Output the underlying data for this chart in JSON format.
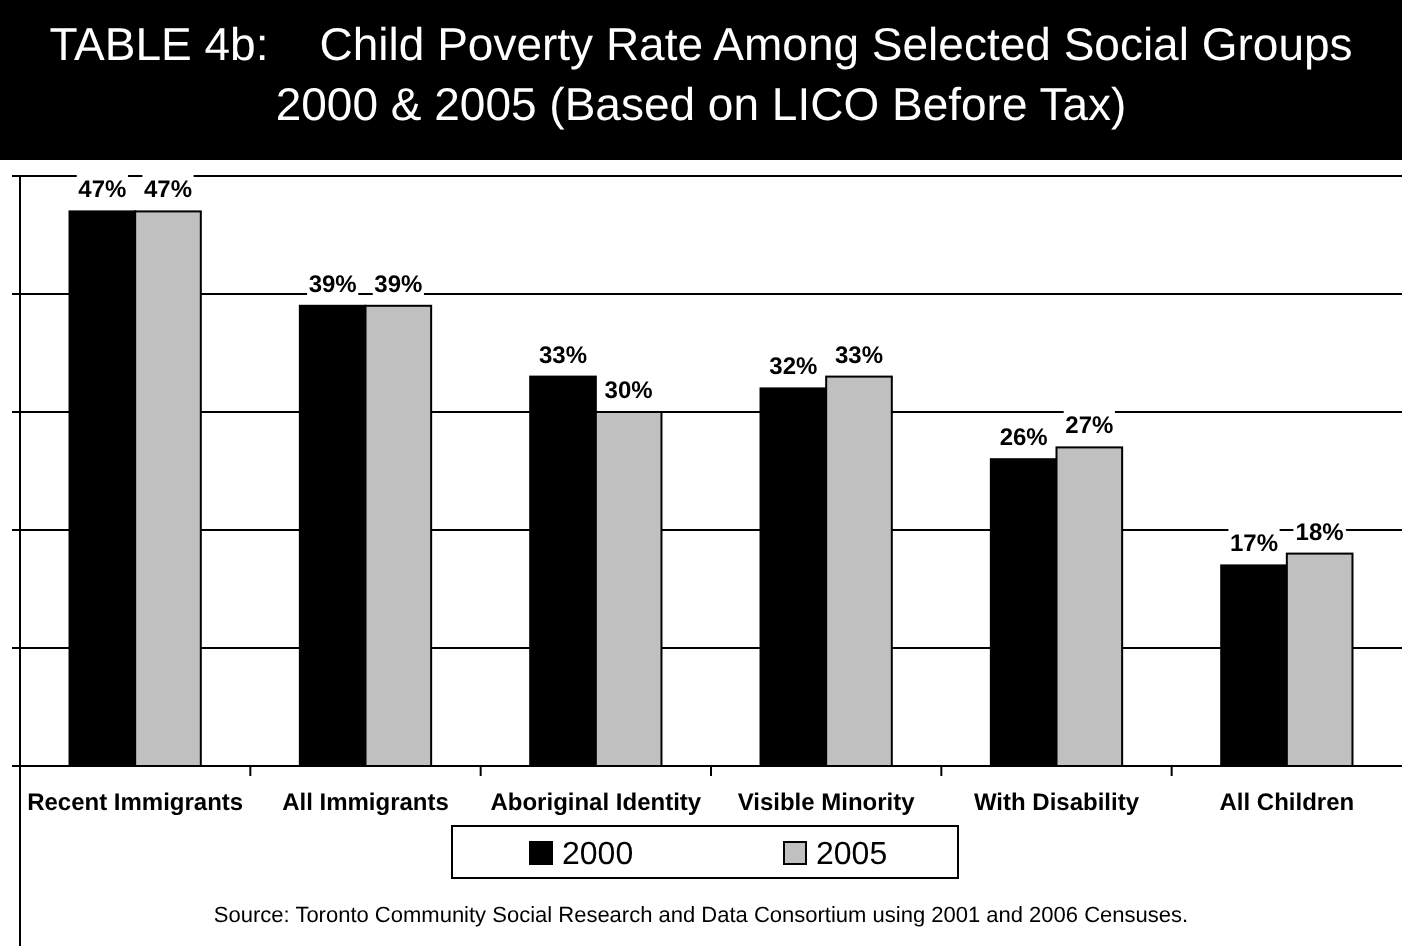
{
  "chart_data": {
    "type": "bar",
    "title": "TABLE 4b:    Child Poverty Rate Among Selected Social Groups\n2000 & 2005 (Based on LICO Before Tax)",
    "categories": [
      "Recent Immigrants",
      "All Immigrants",
      "Aboriginal Identity",
      "Visible Minority",
      "With Disability",
      "All Children"
    ],
    "series": [
      {
        "name": "2000",
        "color": "#000000",
        "values": [
          47,
          39,
          33,
          32,
          26,
          17
        ],
        "value_labels": [
          "47%",
          "39%",
          "33%",
          "32%",
          "26%",
          "17%"
        ]
      },
      {
        "name": "2005",
        "color": "#c0c0c0",
        "values": [
          47,
          39,
          30,
          33,
          27,
          18
        ],
        "value_labels": [
          "47%",
          "39%",
          "30%",
          "33%",
          "27%",
          "18%"
        ]
      }
    ],
    "ylim": [
      0,
      50
    ],
    "yticks": [
      {
        "value": 0,
        "label": null
      },
      {
        "value": 10,
        "label": null
      },
      {
        "value": 20,
        "label": null
      },
      {
        "value": 30,
        "label": null
      },
      {
        "value": 40,
        "label": null
      },
      {
        "value": 50,
        "label": null
      }
    ],
    "tick_labels": "x",
    "grid": "y",
    "legend": "bottom",
    "annotations": [
      "Source: Toronto Community Social Research and Data Consortium using 2001 and 2006 Censuses."
    ]
  }
}
